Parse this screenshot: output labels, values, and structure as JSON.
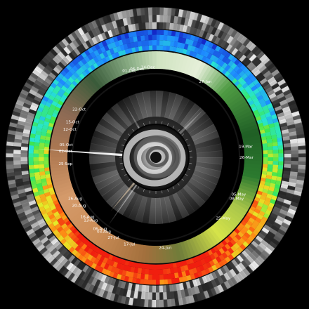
{
  "date_labels": [
    {
      "text": "14-Dec",
      "angle": -5
    },
    {
      "text": "01-Dec",
      "angle": -17
    },
    {
      "text": "06-Dec",
      "angle": -12
    },
    {
      "text": "27-Jan",
      "angle": 33
    },
    {
      "text": "22-Oct",
      "angle": -58
    },
    {
      "text": "15-Oct",
      "angle": -67
    },
    {
      "text": "12-Oct",
      "angle": -72
    },
    {
      "text": "05-Oct",
      "angle": -82
    },
    {
      "text": "02-Oct",
      "angle": -86
    },
    {
      "text": "25-Sep",
      "angle": -94
    },
    {
      "text": "26-Aug",
      "angle": -117
    },
    {
      "text": "20-Aug",
      "angle": -122
    },
    {
      "text": "16-Aug",
      "angle": -131
    },
    {
      "text": "13-Aug",
      "angle": -134
    },
    {
      "text": "06-Aug",
      "angle": -142
    },
    {
      "text": "03-Aug",
      "angle": -145
    },
    {
      "text": "27-Jul",
      "angle": -152
    },
    {
      "text": "17-Jul",
      "angle": -163
    },
    {
      "text": "24-Jun",
      "angle": 174
    },
    {
      "text": "25-May",
      "angle": 132
    },
    {
      "text": "05-May",
      "angle": 114
    },
    {
      "text": "08-May",
      "angle": 117
    },
    {
      "text": "26-Mar",
      "angle": 90
    },
    {
      "text": "19-Mar",
      "angle": 83
    }
  ],
  "colors": {
    "background": "#000000",
    "heat_low": "#2a3cff",
    "heat_mid": "#22e07a",
    "heat_high": "#ff2a10",
    "green_band": "#2f7d32",
    "lime": "#d6e64a",
    "copper": "#c88650",
    "label": "#ffffff"
  },
  "icons": [
    "center-swirl-icon"
  ]
}
